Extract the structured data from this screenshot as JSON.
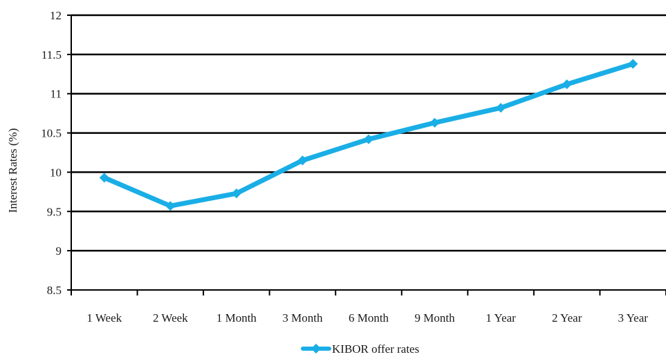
{
  "chart_data": {
    "type": "line",
    "title": "",
    "xlabel": "",
    "ylabel": "Interest Rates (%)",
    "categories": [
      "1 Week",
      "2 Week",
      "1 Month",
      "3 Month",
      "6 Month",
      "9 Month",
      "1 Year",
      "2 Year",
      "3 Year"
    ],
    "series": [
      {
        "name": "KIBOR offer rates",
        "values": [
          9.93,
          9.57,
          9.73,
          10.15,
          10.42,
          10.63,
          10.82,
          11.12,
          11.38
        ],
        "color": "#1aaee6"
      }
    ],
    "ylim": [
      8.5,
      12
    ],
    "yticks": [
      "8.5",
      "9",
      "9.5",
      "10",
      "10.5",
      "11",
      "11.5",
      "12"
    ],
    "grid": true,
    "legend": "bottom-center"
  }
}
